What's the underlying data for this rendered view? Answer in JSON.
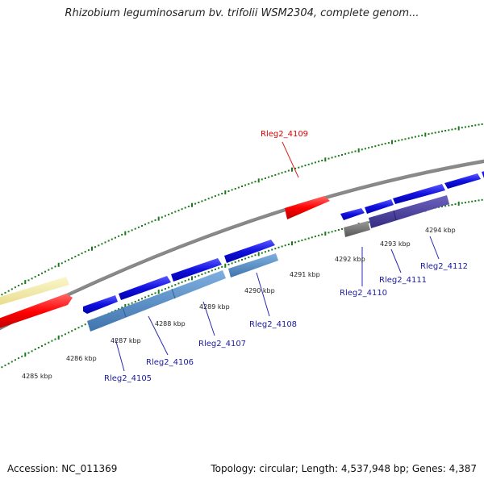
{
  "title": "Rhizobium leguminosarum bv. trifolii WSM2304, complete genom...",
  "footer": {
    "accession": "Accession: NC_011369",
    "summary": "Topology: circular; Length: 4,537,948 bp; Genes: 4,387"
  },
  "colors": {
    "forward_gene": "#1010e0",
    "highlight_gene": "#ff0000",
    "label_default": "#1a1aa0",
    "label_highlight": "#dd0000",
    "backbone": "#808080",
    "ticks": "#1a7a1a",
    "cds_steelblue": "#4f86c0",
    "cds_purple": "#4a3f9a",
    "cds_grey": "#6f6f6f",
    "rna_pale": "#f2eaa0"
  },
  "kbp_labels": [
    "4285 kbp",
    "4286 kbp",
    "4287 kbp",
    "4288 kbp",
    "4289 kbp",
    "4290 kbp",
    "4291 kbp",
    "4292 kbp",
    "4293 kbp",
    "4294 kbp"
  ],
  "genes": [
    {
      "id": "Rleg2_4105",
      "highlight": false
    },
    {
      "id": "Rleg2_4106",
      "highlight": false
    },
    {
      "id": "Rleg2_4107",
      "highlight": false
    },
    {
      "id": "Rleg2_4108",
      "highlight": false
    },
    {
      "id": "Rleg2_4109",
      "highlight": true
    },
    {
      "id": "Rleg2_4110",
      "highlight": false
    },
    {
      "id": "Rleg2_4111",
      "highlight": false
    },
    {
      "id": "Rleg2_4112",
      "highlight": false
    }
  ]
}
